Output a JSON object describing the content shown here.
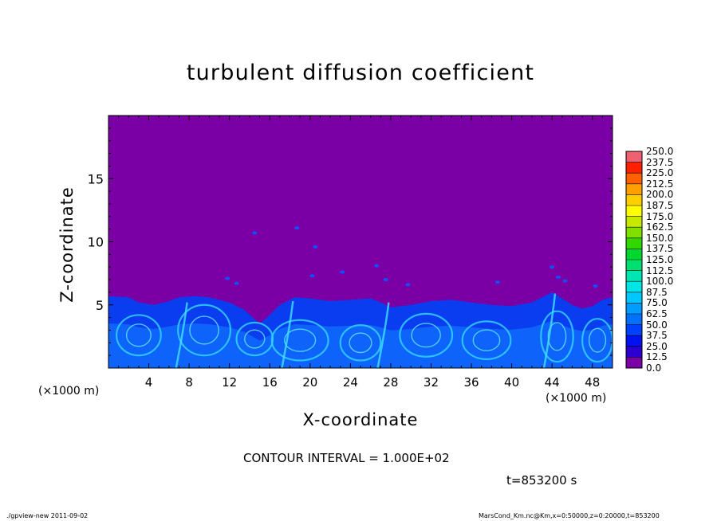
{
  "title": "turbulent diffusion coefficient",
  "footer": {
    "left": "./gpview-new   2011-09-02",
    "right": "MarsCond_Km.nc@Km,x=0:50000,z=0:20000,t=853200"
  },
  "contour_interval": "CONTOUR INTERVAL = 1.000E+02",
  "time_label": "t=853200 s",
  "chart_data": {
    "type": "heatmap",
    "title": "turbulent diffusion coefficient",
    "xlabel": "X-coordinate",
    "ylabel": "Z-coordinate",
    "x_unit_label_left": "(×1000 m)",
    "x_unit_label_right": "(×1000 m)",
    "xlim": [
      0,
      50
    ],
    "ylim": [
      0,
      20
    ],
    "x_ticks": [
      4,
      8,
      12,
      16,
      20,
      24,
      28,
      32,
      36,
      40,
      44,
      48
    ],
    "y_ticks": [
      5,
      10,
      15
    ],
    "grid": false,
    "colorbar": {
      "levels": [
        "0.0",
        "12.5",
        "25.0",
        "37.5",
        "50.0",
        "62.5",
        "75.0",
        "87.5",
        "100.0",
        "112.5",
        "125.0",
        "137.5",
        "150.0",
        "162.5",
        "175.0",
        "187.5",
        "200.0",
        "212.5",
        "225.0",
        "237.5",
        "250.0"
      ],
      "colors": [
        "#7a00a6",
        "#2c00d0",
        "#0012f0",
        "#0040ff",
        "#0070ff",
        "#009cff",
        "#00c8ff",
        "#00e6e6",
        "#00e6b0",
        "#00e070",
        "#00d830",
        "#30d800",
        "#80e000",
        "#c8e800",
        "#ffff00",
        "#ffd000",
        "#ffa000",
        "#ff6000",
        "#ff2000",
        "#f06070"
      ]
    },
    "background_color": "#7a00a6"
  }
}
